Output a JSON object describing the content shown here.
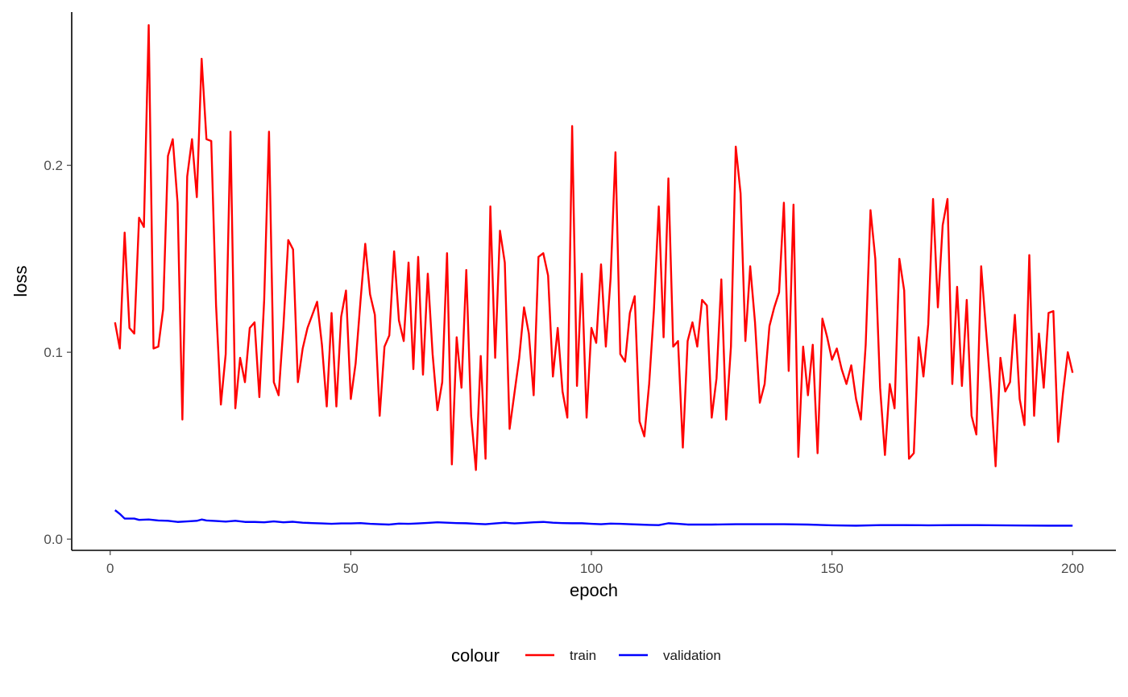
{
  "chart_data": {
    "type": "line",
    "title": "",
    "xlabel": "epoch",
    "ylabel": "loss",
    "xlim": [
      -8,
      209
    ],
    "ylim": [
      -0.006,
      0.282
    ],
    "x_ticks": [
      0,
      50,
      100,
      150,
      200
    ],
    "x_tick_labels": [
      "0",
      "50",
      "100",
      "150",
      "200"
    ],
    "y_ticks": [
      0.0,
      0.1,
      0.2
    ],
    "y_tick_labels": [
      "0.0",
      "0.1",
      "0.2"
    ],
    "grid": false,
    "legend": {
      "title": "colour",
      "position": "bottom"
    },
    "series": [
      {
        "name": "train",
        "color": "#ff0000",
        "x": [
          1,
          2,
          3,
          4,
          5,
          6,
          7,
          8,
          9,
          10,
          11,
          12,
          13,
          14,
          15,
          16,
          17,
          18,
          19,
          20,
          21,
          22,
          23,
          24,
          25,
          26,
          27,
          28,
          29,
          30,
          31,
          32,
          33,
          34,
          35,
          36,
          37,
          38,
          39,
          40,
          41,
          42,
          43,
          44,
          45,
          46,
          47,
          48,
          49,
          50,
          51,
          52,
          53,
          54,
          55,
          56,
          57,
          58,
          59,
          60,
          61,
          62,
          63,
          64,
          65,
          66,
          67,
          68,
          69,
          70,
          71,
          72,
          73,
          74,
          75,
          76,
          77,
          78,
          79,
          80,
          81,
          82,
          83,
          84,
          85,
          86,
          87,
          88,
          89,
          90,
          91,
          92,
          93,
          94,
          95,
          96,
          97,
          98,
          99,
          100,
          101,
          102,
          103,
          104,
          105,
          106,
          107,
          108,
          109,
          110,
          111,
          112,
          113,
          114,
          115,
          116,
          117,
          118,
          119,
          120,
          121,
          122,
          123,
          124,
          125,
          126,
          127,
          128,
          129,
          130,
          131,
          132,
          133,
          134,
          135,
          136,
          137,
          138,
          139,
          140,
          141,
          142,
          143,
          144,
          145,
          146,
          147,
          148,
          149,
          150,
          151,
          152,
          153,
          154,
          155,
          156,
          157,
          158,
          159,
          160,
          161,
          162,
          163,
          164,
          165,
          166,
          167,
          168,
          169,
          170,
          171,
          172,
          173,
          174,
          175,
          176,
          177,
          178,
          179,
          180,
          181,
          182,
          183,
          184,
          185,
          186,
          187,
          188,
          189,
          190,
          191,
          192,
          193,
          194,
          195,
          196,
          197,
          198,
          199,
          200
        ],
        "y": [
          0.116,
          0.102,
          0.164,
          0.113,
          0.11,
          0.172,
          0.167,
          0.275,
          0.102,
          0.103,
          0.123,
          0.205,
          0.214,
          0.18,
          0.064,
          0.194,
          0.214,
          0.183,
          0.257,
          0.214,
          0.213,
          0.125,
          0.072,
          0.099,
          0.218,
          0.07,
          0.097,
          0.084,
          0.113,
          0.116,
          0.076,
          0.128,
          0.218,
          0.084,
          0.077,
          0.114,
          0.16,
          0.155,
          0.084,
          0.102,
          0.113,
          0.12,
          0.127,
          0.104,
          0.071,
          0.121,
          0.071,
          0.119,
          0.133,
          0.075,
          0.094,
          0.127,
          0.158,
          0.131,
          0.12,
          0.066,
          0.103,
          0.109,
          0.154,
          0.117,
          0.106,
          0.148,
          0.091,
          0.151,
          0.088,
          0.142,
          0.099,
          0.069,
          0.084,
          0.153,
          0.04,
          0.108,
          0.081,
          0.144,
          0.066,
          0.037,
          0.098,
          0.043,
          0.178,
          0.097,
          0.165,
          0.148,
          0.059,
          0.078,
          0.097,
          0.124,
          0.11,
          0.077,
          0.151,
          0.153,
          0.141,
          0.087,
          0.113,
          0.079,
          0.065,
          0.221,
          0.082,
          0.142,
          0.065,
          0.113,
          0.105,
          0.147,
          0.103,
          0.14,
          0.207,
          0.099,
          0.095,
          0.121,
          0.13,
          0.063,
          0.055,
          0.083,
          0.123,
          0.178,
          0.108,
          0.193,
          0.103,
          0.106,
          0.049,
          0.106,
          0.116,
          0.103,
          0.128,
          0.125,
          0.065,
          0.086,
          0.139,
          0.064,
          0.103,
          0.21,
          0.185,
          0.106,
          0.146,
          0.116,
          0.073,
          0.083,
          0.114,
          0.124,
          0.132,
          0.18,
          0.09,
          0.179,
          0.044,
          0.103,
          0.077,
          0.104,
          0.046,
          0.118,
          0.108,
          0.096,
          0.102,
          0.091,
          0.083,
          0.093,
          0.075,
          0.064,
          0.104,
          0.176,
          0.15,
          0.081,
          0.045,
          0.083,
          0.07,
          0.15,
          0.133,
          0.043,
          0.046,
          0.108,
          0.087,
          0.115,
          0.182,
          0.124,
          0.168,
          0.182,
          0.083,
          0.135,
          0.082,
          0.128,
          0.066,
          0.056,
          0.146,
          0.112,
          0.08,
          0.039,
          0.097,
          0.079,
          0.084,
          0.12,
          0.075,
          0.061,
          0.152,
          0.066,
          0.11,
          0.081,
          0.121,
          0.122,
          0.052,
          0.078,
          0.1,
          0.089
        ]
      },
      {
        "name": "validation",
        "color": "#0000ff",
        "x": [
          1,
          2,
          3,
          5,
          6,
          8,
          10,
          12,
          14,
          16,
          18,
          19,
          20,
          22,
          24,
          26,
          28,
          30,
          32,
          34,
          36,
          38,
          40,
          42,
          44,
          46,
          48,
          50,
          52,
          54,
          56,
          58,
          60,
          62,
          64,
          66,
          68,
          70,
          72,
          74,
          76,
          78,
          80,
          82,
          84,
          86,
          88,
          90,
          92,
          94,
          96,
          98,
          100,
          102,
          104,
          106,
          108,
          110,
          112,
          114,
          116,
          118,
          120,
          125,
          130,
          135,
          140,
          145,
          150,
          155,
          160,
          165,
          170,
          175,
          180,
          185,
          190,
          195,
          200
        ],
        "y": [
          0.0155,
          0.0135,
          0.011,
          0.011,
          0.0103,
          0.0105,
          0.01,
          0.0098,
          0.0092,
          0.0095,
          0.0098,
          0.0105,
          0.01,
          0.0097,
          0.0094,
          0.0098,
          0.0092,
          0.0092,
          0.009,
          0.0095,
          0.009,
          0.0093,
          0.0088,
          0.0086,
          0.0084,
          0.0082,
          0.0084,
          0.0084,
          0.0086,
          0.0082,
          0.008,
          0.0078,
          0.0083,
          0.0082,
          0.0084,
          0.0087,
          0.009,
          0.0088,
          0.0086,
          0.0085,
          0.0082,
          0.008,
          0.0084,
          0.0088,
          0.0084,
          0.0087,
          0.009,
          0.0092,
          0.0088,
          0.0086,
          0.0085,
          0.0085,
          0.0082,
          0.008,
          0.0083,
          0.0082,
          0.008,
          0.0078,
          0.0076,
          0.0075,
          0.0085,
          0.0082,
          0.0078,
          0.0078,
          0.008,
          0.008,
          0.008,
          0.0078,
          0.0074,
          0.0072,
          0.0075,
          0.0075,
          0.0074,
          0.0075,
          0.0075,
          0.0074,
          0.0073,
          0.0072,
          0.0072
        ]
      }
    ]
  }
}
